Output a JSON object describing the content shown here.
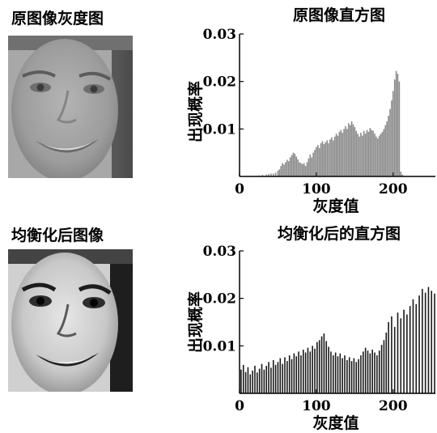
{
  "panels": {
    "original_image_title": "原图像灰度图",
    "equalized_image_title": "均衡化后图像"
  },
  "chart_data": [
    {
      "type": "bar",
      "title": "原图像直方图",
      "xlabel": "灰度值",
      "ylabel": "出现概率",
      "xlim": [
        0,
        255
      ],
      "ylim": [
        0,
        0.03
      ],
      "xticks": [
        0,
        100,
        200
      ],
      "yticks": [
        0.01,
        0.02,
        0.03
      ],
      "ytick_labels": [
        "0.01",
        "0.02",
        "0.03"
      ],
      "bar_color": "#8a8a8a",
      "bins": [
        [
          25,
          0.0002
        ],
        [
          30,
          0.0003
        ],
        [
          35,
          0.0004
        ],
        [
          38,
          0.0005
        ],
        [
          41,
          0.0006
        ],
        [
          44,
          0.0006
        ],
        [
          47,
          0.0008
        ],
        [
          50,
          0.0012
        ],
        [
          52,
          0.0015
        ],
        [
          54,
          0.0022
        ],
        [
          56,
          0.0028
        ],
        [
          58,
          0.0025
        ],
        [
          60,
          0.003
        ],
        [
          62,
          0.0035
        ],
        [
          64,
          0.0032
        ],
        [
          66,
          0.004
        ],
        [
          68,
          0.0045
        ],
        [
          70,
          0.005
        ],
        [
          72,
          0.0048
        ],
        [
          74,
          0.0042
        ],
        [
          76,
          0.0036
        ],
        [
          78,
          0.003
        ],
        [
          80,
          0.0028
        ],
        [
          82,
          0.0026
        ],
        [
          84,
          0.0028
        ],
        [
          86,
          0.0022
        ],
        [
          88,
          0.003
        ],
        [
          90,
          0.0038
        ],
        [
          92,
          0.0046
        ],
        [
          94,
          0.004
        ],
        [
          96,
          0.005
        ],
        [
          98,
          0.0056
        ],
        [
          100,
          0.0062
        ],
        [
          102,
          0.0066
        ],
        [
          104,
          0.006
        ],
        [
          106,
          0.007
        ],
        [
          108,
          0.0074
        ],
        [
          110,
          0.0068
        ],
        [
          112,
          0.0072
        ],
        [
          114,
          0.0076
        ],
        [
          116,
          0.007
        ],
        [
          118,
          0.0078
        ],
        [
          120,
          0.0082
        ],
        [
          122,
          0.0076
        ],
        [
          124,
          0.0084
        ],
        [
          126,
          0.009
        ],
        [
          128,
          0.0086
        ],
        [
          130,
          0.0094
        ],
        [
          132,
          0.0098
        ],
        [
          134,
          0.0092
        ],
        [
          136,
          0.01
        ],
        [
          138,
          0.0106
        ],
        [
          140,
          0.01
        ],
        [
          142,
          0.0112
        ],
        [
          144,
          0.0108
        ],
        [
          146,
          0.0116
        ],
        [
          148,
          0.011
        ],
        [
          150,
          0.0104
        ],
        [
          152,
          0.0096
        ],
        [
          154,
          0.009
        ],
        [
          156,
          0.0084
        ],
        [
          158,
          0.0092
        ],
        [
          160,
          0.0086
        ],
        [
          162,
          0.0096
        ],
        [
          164,
          0.009
        ],
        [
          166,
          0.0098
        ],
        [
          168,
          0.0094
        ],
        [
          170,
          0.0102
        ],
        [
          172,
          0.0098
        ],
        [
          174,
          0.0096
        ],
        [
          176,
          0.009
        ],
        [
          178,
          0.0084
        ],
        [
          180,
          0.008
        ],
        [
          182,
          0.0086
        ],
        [
          184,
          0.009
        ],
        [
          186,
          0.0094
        ],
        [
          188,
          0.01
        ],
        [
          190,
          0.0108
        ],
        [
          192,
          0.0116
        ],
        [
          194,
          0.0128
        ],
        [
          196,
          0.0142
        ],
        [
          198,
          0.016
        ],
        [
          200,
          0.018
        ],
        [
          202,
          0.0204
        ],
        [
          204,
          0.0222
        ],
        [
          206,
          0.0216
        ],
        [
          208,
          0.02
        ],
        [
          210,
          0.001
        ],
        [
          212,
          0.0004
        ]
      ]
    },
    {
      "type": "bar",
      "title": "均衡化后的直方图",
      "xlabel": "灰度值",
      "ylabel": "出现概率",
      "xlim": [
        0,
        255
      ],
      "ylim": [
        0,
        0.03
      ],
      "xticks": [
        0,
        100,
        200
      ],
      "yticks": [
        0.01,
        0.02,
        0.03
      ],
      "ytick_labels": [
        "0.01",
        "0.02",
        "0.03"
      ],
      "bar_color": "#1a1a1a",
      "bins": [
        [
          2,
          0.005
        ],
        [
          5,
          0.006
        ],
        [
          8,
          0.0045
        ],
        [
          11,
          0.0055
        ],
        [
          14,
          0.004
        ],
        [
          17,
          0.0048
        ],
        [
          20,
          0.0058
        ],
        [
          23,
          0.0044
        ],
        [
          26,
          0.0052
        ],
        [
          29,
          0.0062
        ],
        [
          32,
          0.005
        ],
        [
          35,
          0.0058
        ],
        [
          38,
          0.0066
        ],
        [
          41,
          0.0054
        ],
        [
          44,
          0.007
        ],
        [
          47,
          0.006
        ],
        [
          50,
          0.0066
        ],
        [
          53,
          0.0074
        ],
        [
          56,
          0.0062
        ],
        [
          59,
          0.0076
        ],
        [
          62,
          0.0068
        ],
        [
          65,
          0.008
        ],
        [
          68,
          0.0072
        ],
        [
          71,
          0.0084
        ],
        [
          74,
          0.0078
        ],
        [
          77,
          0.0088
        ],
        [
          80,
          0.008
        ],
        [
          83,
          0.0092
        ],
        [
          86,
          0.0086
        ],
        [
          89,
          0.0096
        ],
        [
          92,
          0.0088
        ],
        [
          95,
          0.01
        ],
        [
          98,
          0.0094
        ],
        [
          101,
          0.0108
        ],
        [
          104,
          0.0112
        ],
        [
          107,
          0.012
        ],
        [
          110,
          0.0126
        ],
        [
          113,
          0.011
        ],
        [
          116,
          0.0098
        ],
        [
          119,
          0.0088
        ],
        [
          122,
          0.008
        ],
        [
          125,
          0.0086
        ],
        [
          128,
          0.0078
        ],
        [
          131,
          0.0084
        ],
        [
          134,
          0.0074
        ],
        [
          137,
          0.008
        ],
        [
          140,
          0.007
        ],
        [
          143,
          0.0076
        ],
        [
          146,
          0.0068
        ],
        [
          149,
          0.0074
        ],
        [
          152,
          0.0066
        ],
        [
          155,
          0.0072
        ],
        [
          158,
          0.008
        ],
        [
          161,
          0.0088
        ],
        [
          164,
          0.0096
        ],
        [
          167,
          0.009
        ],
        [
          170,
          0.0084
        ],
        [
          173,
          0.0092
        ],
        [
          176,
          0.0086
        ],
        [
          179,
          0.008
        ],
        [
          182,
          0.009
        ],
        [
          185,
          0.0102
        ],
        [
          188,
          0.0112
        ],
        [
          191,
          0.0128
        ],
        [
          194,
          0.015
        ],
        [
          198,
          0.0162
        ],
        [
          202,
          0.014
        ],
        [
          206,
          0.017
        ],
        [
          210,
          0.0158
        ],
        [
          214,
          0.0176
        ],
        [
          218,
          0.0166
        ],
        [
          222,
          0.0184
        ],
        [
          226,
          0.0198
        ],
        [
          230,
          0.0188
        ],
        [
          234,
          0.0206
        ],
        [
          238,
          0.022
        ],
        [
          242,
          0.0212
        ],
        [
          246,
          0.0224
        ],
        [
          250,
          0.0216
        ],
        [
          254,
          0.021
        ]
      ]
    }
  ]
}
